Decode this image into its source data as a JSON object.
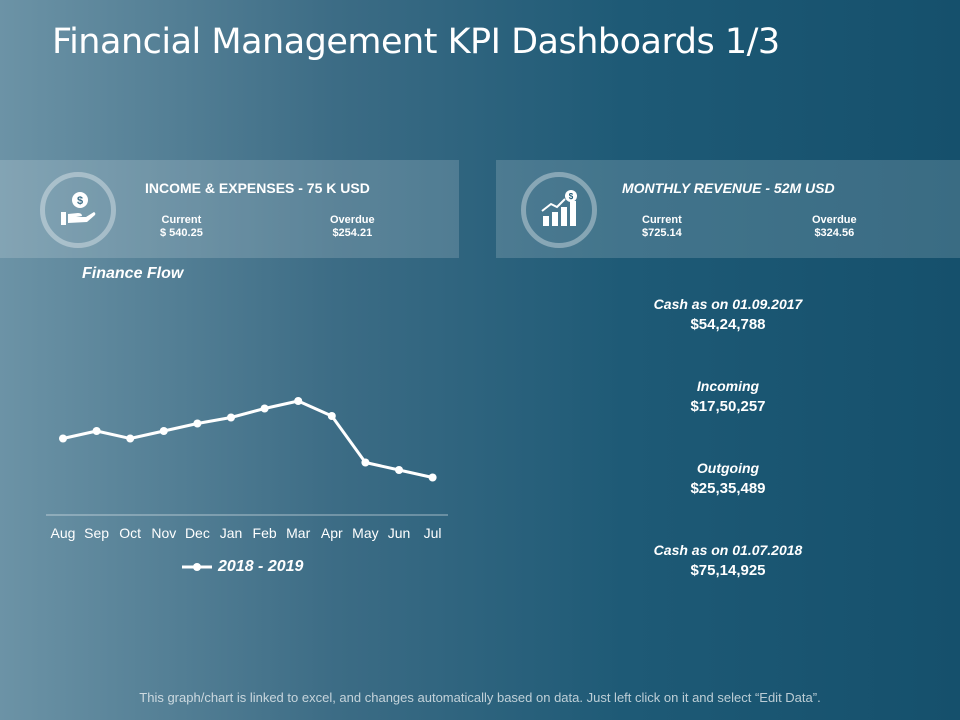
{
  "title": "Financial Management KPI Dashboards 1/3",
  "cards": {
    "income": {
      "heading": "INCOME & EXPENSES - 75 K USD",
      "current_label": "Current",
      "current_value": "$ 540.25",
      "overdue_label": "Overdue",
      "overdue_value": "$254.21",
      "icon": "hand-dollar-icon"
    },
    "revenue": {
      "heading": "MONTHLY REVENUE - 52M USD",
      "current_label": "Current",
      "current_value": "$725.14",
      "overdue_label": "Overdue",
      "overdue_value": "$324.56",
      "icon": "growth-bars-icon"
    }
  },
  "stats": [
    {
      "label": "Cash as on 01.09.2017",
      "value": "$54,24,788"
    },
    {
      "label": "Incoming",
      "value": "$17,50,257"
    },
    {
      "label": "Outgoing",
      "value": "$25,35,489"
    },
    {
      "label": "Cash as on 01.07.2018",
      "value": "$75,14,925"
    }
  ],
  "chart_data": {
    "type": "line",
    "title": "Finance Flow",
    "categories": [
      "Aug",
      "Sep",
      "Oct",
      "Nov",
      "Dec",
      "Jan",
      "Feb",
      "Mar",
      "Apr",
      "May",
      "Jun",
      "Jul"
    ],
    "series": [
      {
        "name": "2018 - 2019",
        "values": [
          51,
          56,
          51,
          56,
          61,
          65,
          71,
          76,
          66,
          35,
          30,
          25
        ]
      }
    ],
    "ylim": [
      0,
      140
    ],
    "xlabel": "",
    "ylabel": "",
    "grid": false,
    "legend": "bottom"
  },
  "footnote": "This graph/chart is linked to excel, and changes automatically based on data. Just left click on it and select “Edit Data”.",
  "colors": {
    "line": "#ffffff",
    "card": "rgba(255,255,255,0.16)"
  }
}
